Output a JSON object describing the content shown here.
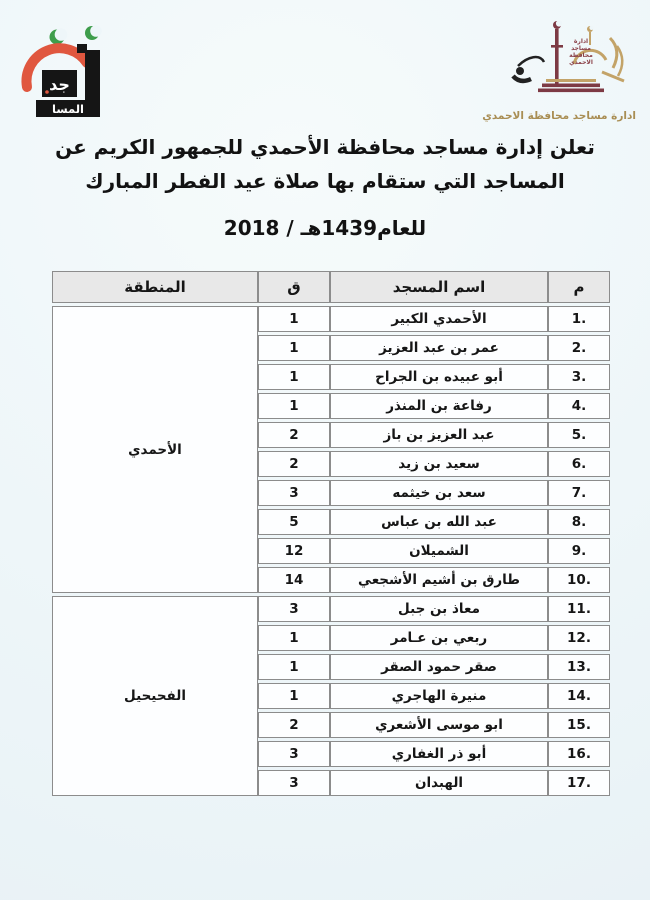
{
  "page": {
    "title_lines": [
      "تعلن إدارة مساجد محافظة الأحمدي للجمهور الكريم عن",
      "المساجد التي ستقام بها صلاة عيد الفطر المبارك",
      "للعام1439هـ / 2018"
    ],
    "background_color": "#eef6f9"
  },
  "logos": {
    "left": {
      "name": "kufic-mosques-calligraphy",
      "top_word": "جد",
      "bottom_word": "المسا",
      "crescent_color": "#3e9d4b",
      "arc_color": "#e0573f",
      "block_color": "#151515"
    },
    "right": {
      "name": "ahmadi-mosques-administration-emblem",
      "stack_words": [
        "ادارة",
        "مساجد",
        "محافظة",
        "الاحمدي"
      ],
      "caption": "ادارة مساجد محافظة الاحمدي",
      "maroon_color": "#7d3a44",
      "gold_color": "#c3a368",
      "caption_color": "#a98e54"
    }
  },
  "table": {
    "headers": {
      "index": "م",
      "mosque": "اسم المسجد",
      "count": "ق",
      "region": "المنطقة"
    },
    "header_bg": "#e8e8e8",
    "border_color": "#8c8c8c",
    "groups": [
      {
        "region": "الأحمدي",
        "rows": [
          {
            "index": "1.",
            "mosque": "الأحمدي الكبير",
            "count": "1"
          },
          {
            "index": "2.",
            "mosque": "عمر بن عبد العزيز",
            "count": "1"
          },
          {
            "index": "3.",
            "mosque": "أبو عبيده بن الجراح",
            "count": "1"
          },
          {
            "index": "4.",
            "mosque": "رفاعة بن المنذر",
            "count": "1"
          },
          {
            "index": "5.",
            "mosque": "عبد العزيز بن باز",
            "count": "2"
          },
          {
            "index": "6.",
            "mosque": "سعيد بن زيد",
            "count": "2"
          },
          {
            "index": "7.",
            "mosque": "سعد بن خيثمه",
            "count": "3"
          },
          {
            "index": "8.",
            "mosque": "عبد الله بن عباس",
            "count": "5"
          },
          {
            "index": "9.",
            "mosque": "الشميلان",
            "count": "12"
          },
          {
            "index": "10.",
            "mosque": "طارق بن أشيم الأشجعي",
            "count": "14"
          }
        ]
      },
      {
        "region": "الفحيحيل",
        "rows": [
          {
            "index": "11.",
            "mosque": "معاذ بن جبل",
            "count": "3"
          },
          {
            "index": "12.",
            "mosque": "ربعي بن عـامر",
            "count": "1"
          },
          {
            "index": "13.",
            "mosque": "صقر حمود الصقر",
            "count": "1"
          },
          {
            "index": "14.",
            "mosque": "منيرة الهاجري",
            "count": "1"
          },
          {
            "index": "15.",
            "mosque": "ابو موسى الأشعري",
            "count": "2"
          },
          {
            "index": "16.",
            "mosque": "أبو ذر الغفاري",
            "count": "3"
          },
          {
            "index": "17.",
            "mosque": "الهبدان",
            "count": "3"
          }
        ]
      }
    ]
  }
}
